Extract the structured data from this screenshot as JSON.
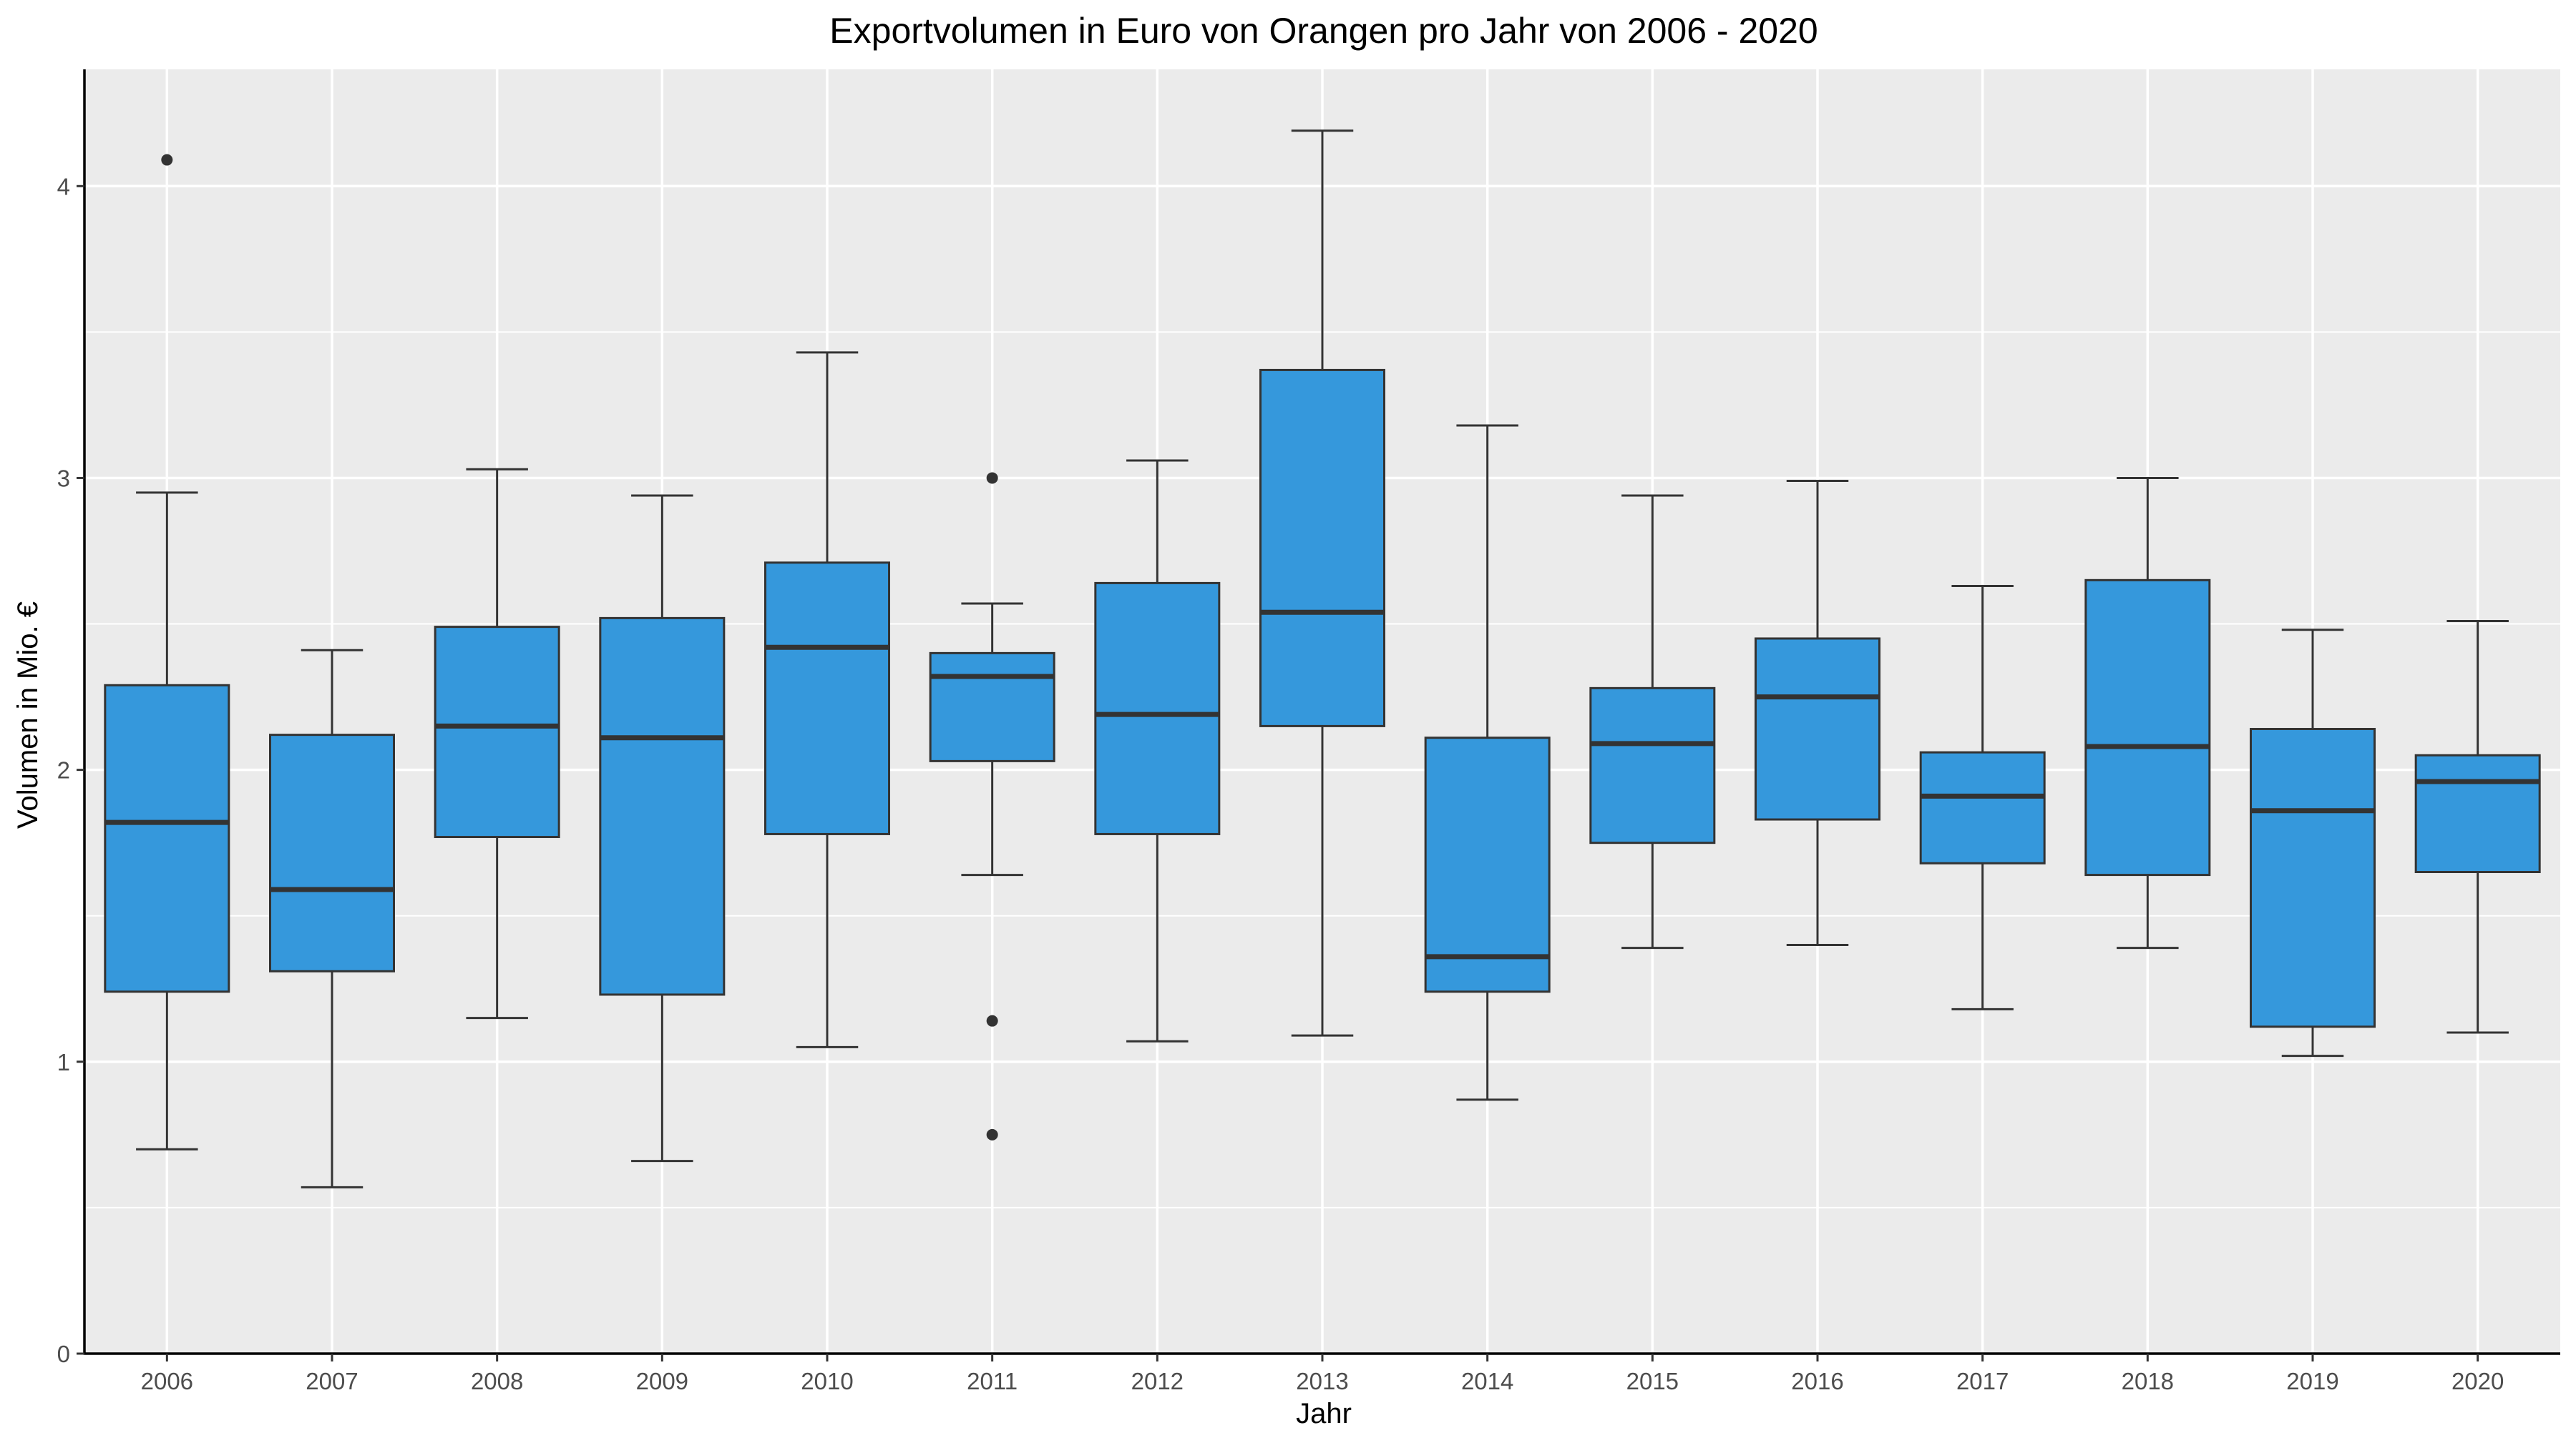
{
  "chart_data": {
    "type": "boxplot",
    "title": "Exportvolumen in Euro von Orangen pro Jahr von 2006 - 2020",
    "xlabel": "Jahr",
    "ylabel": "Volumen in Mio. €",
    "ylim": [
      0,
      4.4
    ],
    "yticks": [
      0,
      1,
      2,
      3,
      4
    ],
    "grid": true,
    "legend": "none",
    "colors": {
      "panel": "#ebebeb",
      "grid": "#ffffff",
      "box_fill": "#3598dc",
      "box_line": "#333333",
      "outlier": "#333333"
    },
    "categories": [
      "2006",
      "2007",
      "2008",
      "2009",
      "2010",
      "2011",
      "2012",
      "2013",
      "2014",
      "2015",
      "2016",
      "2017",
      "2018",
      "2019",
      "2020"
    ],
    "boxes": [
      {
        "year": "2006",
        "whisker_low": 0.7,
        "q1": 1.24,
        "median": 1.82,
        "q3": 2.29,
        "whisker_high": 2.95,
        "outliers": [
          4.09
        ]
      },
      {
        "year": "2007",
        "whisker_low": 0.57,
        "q1": 1.31,
        "median": 1.59,
        "q3": 2.12,
        "whisker_high": 2.41,
        "outliers": []
      },
      {
        "year": "2008",
        "whisker_low": 1.15,
        "q1": 1.77,
        "median": 2.15,
        "q3": 2.49,
        "whisker_high": 3.03,
        "outliers": []
      },
      {
        "year": "2009",
        "whisker_low": 0.66,
        "q1": 1.23,
        "median": 2.11,
        "q3": 2.52,
        "whisker_high": 2.94,
        "outliers": []
      },
      {
        "year": "2010",
        "whisker_low": 1.05,
        "q1": 1.78,
        "median": 2.42,
        "q3": 2.71,
        "whisker_high": 3.43,
        "outliers": []
      },
      {
        "year": "2011",
        "whisker_low": 1.64,
        "q1": 2.03,
        "median": 2.32,
        "q3": 2.4,
        "whisker_high": 2.57,
        "outliers": [
          3.0,
          1.14,
          0.75
        ]
      },
      {
        "year": "2012",
        "whisker_low": 1.07,
        "q1": 1.78,
        "median": 2.19,
        "q3": 2.64,
        "whisker_high": 3.06,
        "outliers": []
      },
      {
        "year": "2013",
        "whisker_low": 1.09,
        "q1": 2.15,
        "median": 2.54,
        "q3": 3.37,
        "whisker_high": 4.19,
        "outliers": []
      },
      {
        "year": "2014",
        "whisker_low": 0.87,
        "q1": 1.24,
        "median": 1.36,
        "q3": 2.11,
        "whisker_high": 3.18,
        "outliers": []
      },
      {
        "year": "2015",
        "whisker_low": 1.39,
        "q1": 1.75,
        "median": 2.09,
        "q3": 2.28,
        "whisker_high": 2.94,
        "outliers": []
      },
      {
        "year": "2016",
        "whisker_low": 1.4,
        "q1": 1.83,
        "median": 2.25,
        "q3": 2.45,
        "whisker_high": 2.99,
        "outliers": []
      },
      {
        "year": "2017",
        "whisker_low": 1.18,
        "q1": 1.68,
        "median": 1.91,
        "q3": 2.06,
        "whisker_high": 2.63,
        "outliers": []
      },
      {
        "year": "2018",
        "whisker_low": 1.39,
        "q1": 1.64,
        "median": 2.08,
        "q3": 2.65,
        "whisker_high": 3.0,
        "outliers": []
      },
      {
        "year": "2019",
        "whisker_low": 1.02,
        "q1": 1.12,
        "median": 1.86,
        "q3": 2.14,
        "whisker_high": 2.48,
        "outliers": []
      },
      {
        "year": "2020",
        "whisker_low": 1.1,
        "q1": 1.65,
        "median": 1.96,
        "q3": 2.05,
        "whisker_high": 2.51,
        "outliers": []
      }
    ]
  }
}
